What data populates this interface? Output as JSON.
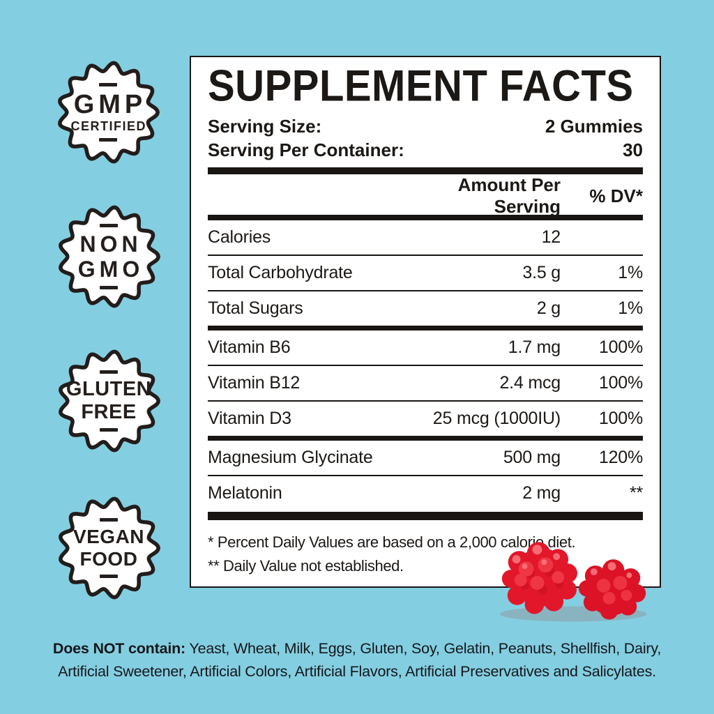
{
  "colors": {
    "background": "#84cee1",
    "panel_background": "#ffffff",
    "ink": "#1b1815",
    "gummy_red": "#e2172a"
  },
  "badges": [
    {
      "line1": "GMP",
      "line2": "CERTIFIED"
    },
    {
      "line1": "NON",
      "line2": "GMO"
    },
    {
      "line1": "GLUTEN",
      "line2": "FREE"
    },
    {
      "line1": "VEGAN",
      "line2": "FOOD"
    }
  ],
  "panel": {
    "title": "SUPPLEMENT FACTS",
    "serving_size_label": "Serving Size:",
    "serving_size_value": "2 Gummies",
    "servings_label": "Serving Per Container:",
    "servings_value": "30",
    "col_amount": "Amount Per Serving",
    "col_dv": "% DV*",
    "rows": [
      {
        "name": "Calories",
        "amount": "12",
        "dv": "",
        "sep": "thin"
      },
      {
        "name": "Total Carbohydrate",
        "amount": "3.5 g",
        "dv": "1%",
        "sep": "thin"
      },
      {
        "name": "Total Sugars",
        "amount": "2 g",
        "dv": "1%",
        "sep": "thick"
      },
      {
        "name": "Vitamin B6",
        "amount": "1.7 mg",
        "dv": "100%",
        "sep": "thin"
      },
      {
        "name": "Vitamin B12",
        "amount": "2.4 mcg",
        "dv": "100%",
        "sep": "thin"
      },
      {
        "name": "Vitamin D3",
        "amount": "25 mcg (1000IU)",
        "dv": "100%",
        "sep": "thick"
      },
      {
        "name": "Magnesium Glycinate",
        "amount": "500 mg",
        "dv": "120%",
        "sep": "thin"
      },
      {
        "name": "Melatonin",
        "amount": "2 mg",
        "dv": "**",
        "sep": "none"
      }
    ],
    "footnotes": [
      "* Percent Daily Values are based on a 2,000 calorie diet.",
      "** Daily Value not established."
    ]
  },
  "bottom_note": {
    "bold": "Does NOT contain:",
    "text": " Yeast, Wheat, Milk, Eggs, Gluten, Soy, Gelatin, Peanuts, Shellfish, Dairy, Artificial Sweetener, Artificial Colors, Artificial Flavors, Artificial Preservatives and Salicylates."
  }
}
